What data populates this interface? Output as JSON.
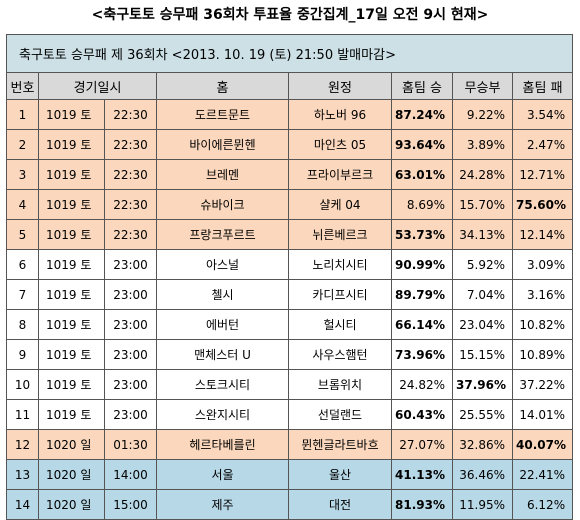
{
  "title": "<축구토토 승무패 36회차 투표율 중간집계_17일 오전 9시 현재>",
  "caption": "축구토토 승무패 제 36회차 <2013. 10. 19 (토) 21:50 발매마감>",
  "headers": {
    "num": "번호",
    "datetime": "경기일시",
    "home": "홈",
    "away": "원정",
    "win": "홈팀 승",
    "draw": "무승부",
    "loss": "홈팀 패"
  },
  "colors": {
    "orange": "#fbd8bd",
    "white": "#ffffff",
    "blue": "#b7d8e6",
    "caption": "#cce0e6",
    "header": "#d9d9d9"
  },
  "rows": [
    {
      "num": "1",
      "date": "1019 토",
      "time": "22:30",
      "home": "도르트문트",
      "away": "하노버 96",
      "win": "87.24%",
      "draw": "9.22%",
      "loss": "3.54%",
      "bold": "win",
      "tint": "orange"
    },
    {
      "num": "2",
      "date": "1019 토",
      "time": "22:30",
      "home": "바이에른뮌헨",
      "away": "마인츠 05",
      "win": "93.64%",
      "draw": "3.89%",
      "loss": "2.47%",
      "bold": "win",
      "tint": "orange"
    },
    {
      "num": "3",
      "date": "1019 토",
      "time": "22:30",
      "home": "브레멘",
      "away": "프라이부르크",
      "win": "63.01%",
      "draw": "24.28%",
      "loss": "12.71%",
      "bold": "win",
      "tint": "orange"
    },
    {
      "num": "4",
      "date": "1019 토",
      "time": "22:30",
      "home": "슈바이크",
      "away": "샬케 04",
      "win": "8.69%",
      "draw": "15.70%",
      "loss": "75.60%",
      "bold": "loss",
      "tint": "orange"
    },
    {
      "num": "5",
      "date": "1019 토",
      "time": "22:30",
      "home": "프랑크푸르트",
      "away": "뉘른베르크",
      "win": "53.73%",
      "draw": "34.13%",
      "loss": "12.14%",
      "bold": "win",
      "tint": "orange"
    },
    {
      "num": "6",
      "date": "1019 토",
      "time": "23:00",
      "home": "아스널",
      "away": "노리치시티",
      "win": "90.99%",
      "draw": "5.92%",
      "loss": "3.09%",
      "bold": "win",
      "tint": "white"
    },
    {
      "num": "7",
      "date": "1019 토",
      "time": "23:00",
      "home": "첼시",
      "away": "카디프시티",
      "win": "89.79%",
      "draw": "7.04%",
      "loss": "3.16%",
      "bold": "win",
      "tint": "white"
    },
    {
      "num": "8",
      "date": "1019 토",
      "time": "23:00",
      "home": "에버턴",
      "away": "헐시티",
      "win": "66.14%",
      "draw": "23.04%",
      "loss": "10.82%",
      "bold": "win",
      "tint": "white"
    },
    {
      "num": "9",
      "date": "1019 토",
      "time": "23:00",
      "home": "맨체스터 U",
      "away": "사우스햄턴",
      "win": "73.96%",
      "draw": "15.15%",
      "loss": "10.89%",
      "bold": "win",
      "tint": "white"
    },
    {
      "num": "10",
      "date": "1019 토",
      "time": "23:00",
      "home": "스토크시티",
      "away": "브롬위치",
      "win": "24.82%",
      "draw": "37.96%",
      "loss": "37.22%",
      "bold": "draw",
      "tint": "white"
    },
    {
      "num": "11",
      "date": "1019 토",
      "time": "23:00",
      "home": "스완지시티",
      "away": "선덜랜드",
      "win": "60.43%",
      "draw": "25.55%",
      "loss": "14.01%",
      "bold": "win",
      "tint": "white"
    },
    {
      "num": "12",
      "date": "1020 일",
      "time": "01:30",
      "home": "헤르타베를린",
      "away": "뮌헨글라트바흐",
      "win": "27.07%",
      "draw": "32.86%",
      "loss": "40.07%",
      "bold": "loss",
      "tint": "orange"
    },
    {
      "num": "13",
      "date": "1020 일",
      "time": "14:00",
      "home": "서울",
      "away": "울산",
      "win": "41.13%",
      "draw": "36.46%",
      "loss": "22.41%",
      "bold": "win",
      "tint": "blue"
    },
    {
      "num": "14",
      "date": "1020 일",
      "time": "15:00",
      "home": "제주",
      "away": "대전",
      "win": "81.93%",
      "draw": "11.95%",
      "loss": "6.12%",
      "bold": "win",
      "tint": "blue"
    }
  ]
}
